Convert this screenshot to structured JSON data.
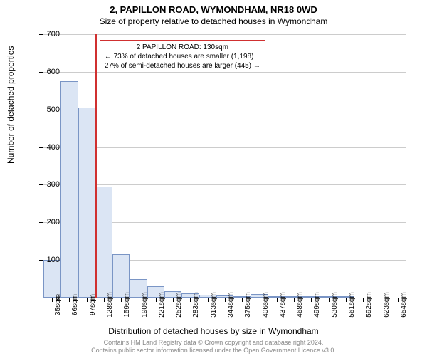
{
  "header": {
    "title": "2, PAPILLON ROAD, WYMONDHAM, NR18 0WD",
    "subtitle": "Size of property relative to detached houses in Wymondham"
  },
  "chart": {
    "type": "histogram",
    "ylabel": "Number of detached properties",
    "xlabel": "Distribution of detached houses by size in Wymondham",
    "ylim": [
      0,
      700
    ],
    "ytick_step": 100,
    "yticks": [
      0,
      100,
      200,
      300,
      400,
      500,
      600,
      700
    ],
    "categories": [
      "35sqm",
      "66sqm",
      "97sqm",
      "128sqm",
      "159sqm",
      "190sqm",
      "221sqm",
      "252sqm",
      "283sqm",
      "313sqm",
      "344sqm",
      "375sqm",
      "406sqm",
      "437sqm",
      "468sqm",
      "499sqm",
      "530sqm",
      "561sqm",
      "592sqm",
      "623sqm",
      "654sqm"
    ],
    "values": [
      100,
      575,
      505,
      295,
      115,
      50,
      30,
      18,
      12,
      8,
      6,
      4,
      10,
      3,
      2,
      1,
      1,
      1,
      0,
      0,
      0
    ],
    "bar_fill": "#dbe5f4",
    "bar_border": "#7a95c5",
    "grid_color": "#cccccc",
    "background_color": "#ffffff",
    "axis_color": "#000000",
    "label_fontsize": 12,
    "tick_fontsize": 11,
    "xtick_fontsize": 10,
    "bar_width_ratio": 1.0,
    "marker": {
      "position_index": 3.0,
      "color": "#d03030"
    },
    "annotation": {
      "line1": "2 PAPILLON ROAD: 130sqm",
      "line2": "← 73% of detached houses are smaller (1,198)",
      "line3": "27% of semi-detached houses are larger (445) →",
      "border_color": "#d03030",
      "background": "#ffffff",
      "fontsize": 10
    }
  },
  "footer": {
    "line1": "Contains HM Land Registry data © Crown copyright and database right 2024.",
    "line2": "Contains public sector information licensed under the Open Government Licence v3.0.",
    "color": "#888888"
  }
}
